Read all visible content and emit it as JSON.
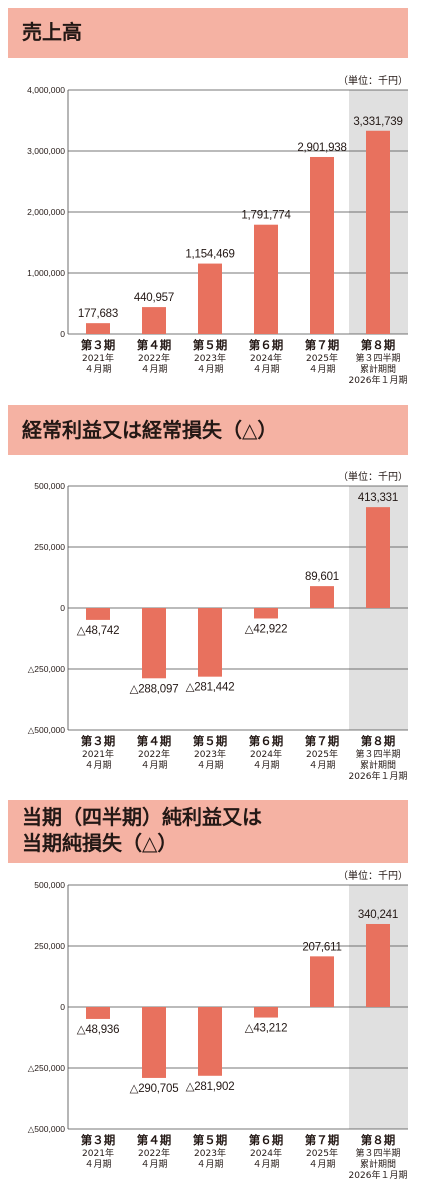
{
  "unit_label": "（単位：千円）",
  "categories": [
    {
      "period": "第３期",
      "line2": "2021年",
      "line3": "４月期",
      "line4": ""
    },
    {
      "period": "第４期",
      "line2": "2022年",
      "line3": "４月期",
      "line4": ""
    },
    {
      "period": "第５期",
      "line2": "2023年",
      "line3": "４月期",
      "line4": ""
    },
    {
      "period": "第６期",
      "line2": "2024年",
      "line3": "４月期",
      "line4": ""
    },
    {
      "period": "第７期",
      "line2": "2025年",
      "line3": "４月期",
      "line4": ""
    },
    {
      "period": "第８期",
      "line2": "第３四半期",
      "line3": "累計期間",
      "line4": "2026年１月期"
    }
  ],
  "colors": {
    "bar": "#e8715e",
    "header": "#f5b2a3",
    "highlight": "#e0e0e0",
    "grid": "#4a4a4a"
  },
  "chart_data": [
    {
      "type": "bar",
      "title": "売上高",
      "ylim": [
        0,
        4000000
      ],
      "yticks": [
        0,
        1000000,
        2000000,
        3000000,
        4000000
      ],
      "ytick_labels": [
        "0",
        "1,000,000",
        "2,000,000",
        "3,000,000",
        "4,000,000"
      ],
      "values": [
        177683,
        440957,
        1154469,
        1791774,
        2901938,
        3331739
      ],
      "value_labels": [
        "177,683",
        "440,957",
        "1,154,469",
        "1,791,774",
        "2,901,938",
        "3,331,739"
      ],
      "highlight_index": 5
    },
    {
      "type": "bar",
      "title": "経常利益又は経常損失（△）",
      "ylim": [
        -500000,
        500000
      ],
      "yticks": [
        -500000,
        -250000,
        0,
        250000,
        500000
      ],
      "ytick_labels": [
        "△500,000",
        "△250,000",
        "0",
        "250,000",
        "500,000"
      ],
      "values": [
        -48742,
        -288097,
        -281442,
        -42922,
        89601,
        413331
      ],
      "value_labels": [
        "△48,742",
        "△288,097",
        "△281,442",
        "△42,922",
        "89,601",
        "413,331"
      ],
      "highlight_index": 5
    },
    {
      "type": "bar",
      "title": "当期（四半期）純利益又は\n当期純損失（△）",
      "ylim": [
        -500000,
        500000
      ],
      "yticks": [
        -500000,
        -250000,
        0,
        250000,
        500000
      ],
      "ytick_labels": [
        "△500,000",
        "△250,000",
        "0",
        "250,000",
        "500,000"
      ],
      "values": [
        -48936,
        -290705,
        -281902,
        -43212,
        207611,
        340241
      ],
      "value_labels": [
        "△48,936",
        "△290,705",
        "△281,902",
        "△43,212",
        "207,611",
        "340,241"
      ],
      "highlight_index": 5
    }
  ]
}
